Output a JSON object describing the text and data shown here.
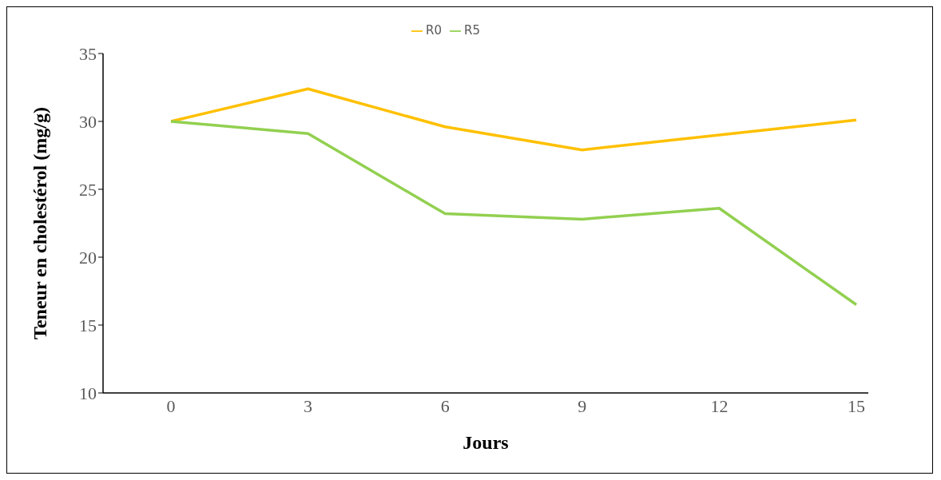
{
  "chart_data": {
    "type": "line",
    "xlabel": "Jours",
    "ylabel": "Teneur en cholestérol (mg/g)",
    "categories": [
      "0",
      "3",
      "6",
      "9",
      "12",
      "15"
    ],
    "series": [
      {
        "name": "R0",
        "color": "#ffc000",
        "values": [
          30,
          32.4,
          29.6,
          27.9,
          29.0,
          30.1
        ]
      },
      {
        "name": "R5",
        "color": "#92d050",
        "values": [
          30,
          29.1,
          23.2,
          22.8,
          23.6,
          16.5
        ]
      }
    ],
    "ylim": [
      10,
      35
    ],
    "yticks": [
      10,
      15,
      20,
      25,
      30,
      35
    ],
    "grid": false,
    "legend": "top",
    "marker": "none",
    "line_style": "solid"
  }
}
